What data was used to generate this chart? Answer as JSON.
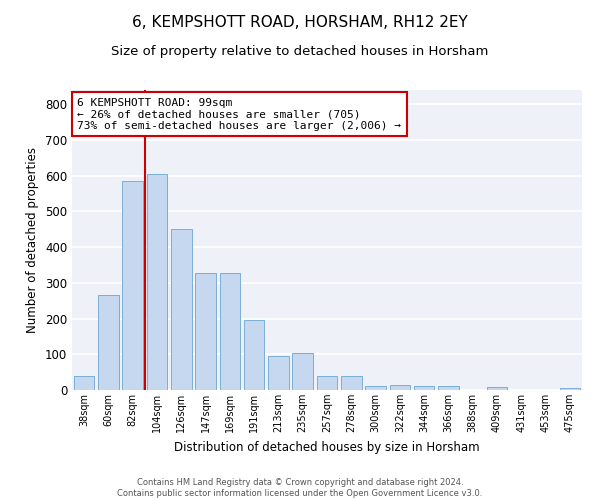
{
  "title": "6, KEMPSHOTT ROAD, HORSHAM, RH12 2EY",
  "subtitle": "Size of property relative to detached houses in Horsham",
  "xlabel": "Distribution of detached houses by size in Horsham",
  "ylabel": "Number of detached properties",
  "categories": [
    "38sqm",
    "60sqm",
    "82sqm",
    "104sqm",
    "126sqm",
    "147sqm",
    "169sqm",
    "191sqm",
    "213sqm",
    "235sqm",
    "257sqm",
    "278sqm",
    "300sqm",
    "322sqm",
    "344sqm",
    "366sqm",
    "388sqm",
    "409sqm",
    "431sqm",
    "453sqm",
    "475sqm"
  ],
  "values": [
    38,
    265,
    585,
    605,
    450,
    328,
    328,
    197,
    95,
    103,
    38,
    38,
    12,
    13,
    12,
    10,
    0,
    8,
    0,
    0,
    5
  ],
  "bar_color": "#c5d8f0",
  "bar_edge_color": "#7aafd4",
  "annotation_text": "6 KEMPSHOTT ROAD: 99sqm\n← 26% of detached houses are smaller (705)\n73% of semi-detached houses are larger (2,006) →",
  "annotation_box_color": "#ffffff",
  "annotation_box_edge_color": "#cc0000",
  "vline_color": "#cc0000",
  "background_color": "#eef2f8",
  "grid_color": "#ffffff",
  "footer_line1": "Contains HM Land Registry data © Crown copyright and database right 2024.",
  "footer_line2": "Contains public sector information licensed under the Open Government Licence v3.0.",
  "ylim": [
    0,
    840
  ],
  "yticks": [
    0,
    100,
    200,
    300,
    400,
    500,
    600,
    700,
    800
  ],
  "title_fontsize": 11,
  "subtitle_fontsize": 9.5,
  "vline_x": 2.5
}
